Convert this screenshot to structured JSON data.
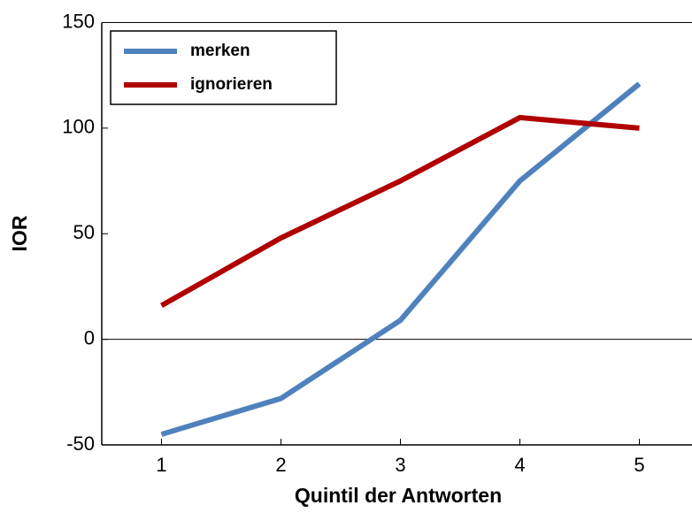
{
  "chart_data": {
    "type": "line",
    "xlabel": "Quintil der Antworten",
    "ylabel": "IOR",
    "x": [
      1,
      2,
      3,
      4,
      5
    ],
    "series": [
      {
        "name": "merken",
        "color": "#4f81bd",
        "values": [
          -45,
          -28,
          9,
          75,
          121
        ]
      },
      {
        "name": "ignorieren",
        "color": "#b00000",
        "values": [
          16,
          48,
          75,
          105,
          100
        ]
      }
    ],
    "xlim": [
      0.5,
      5.5
    ],
    "xticks": [
      1,
      2,
      3,
      4,
      5
    ],
    "ylim": [
      -50,
      150
    ],
    "yticks": [
      -50,
      0,
      50,
      100,
      150
    ],
    "zero_line": true,
    "legend": "upper left"
  }
}
